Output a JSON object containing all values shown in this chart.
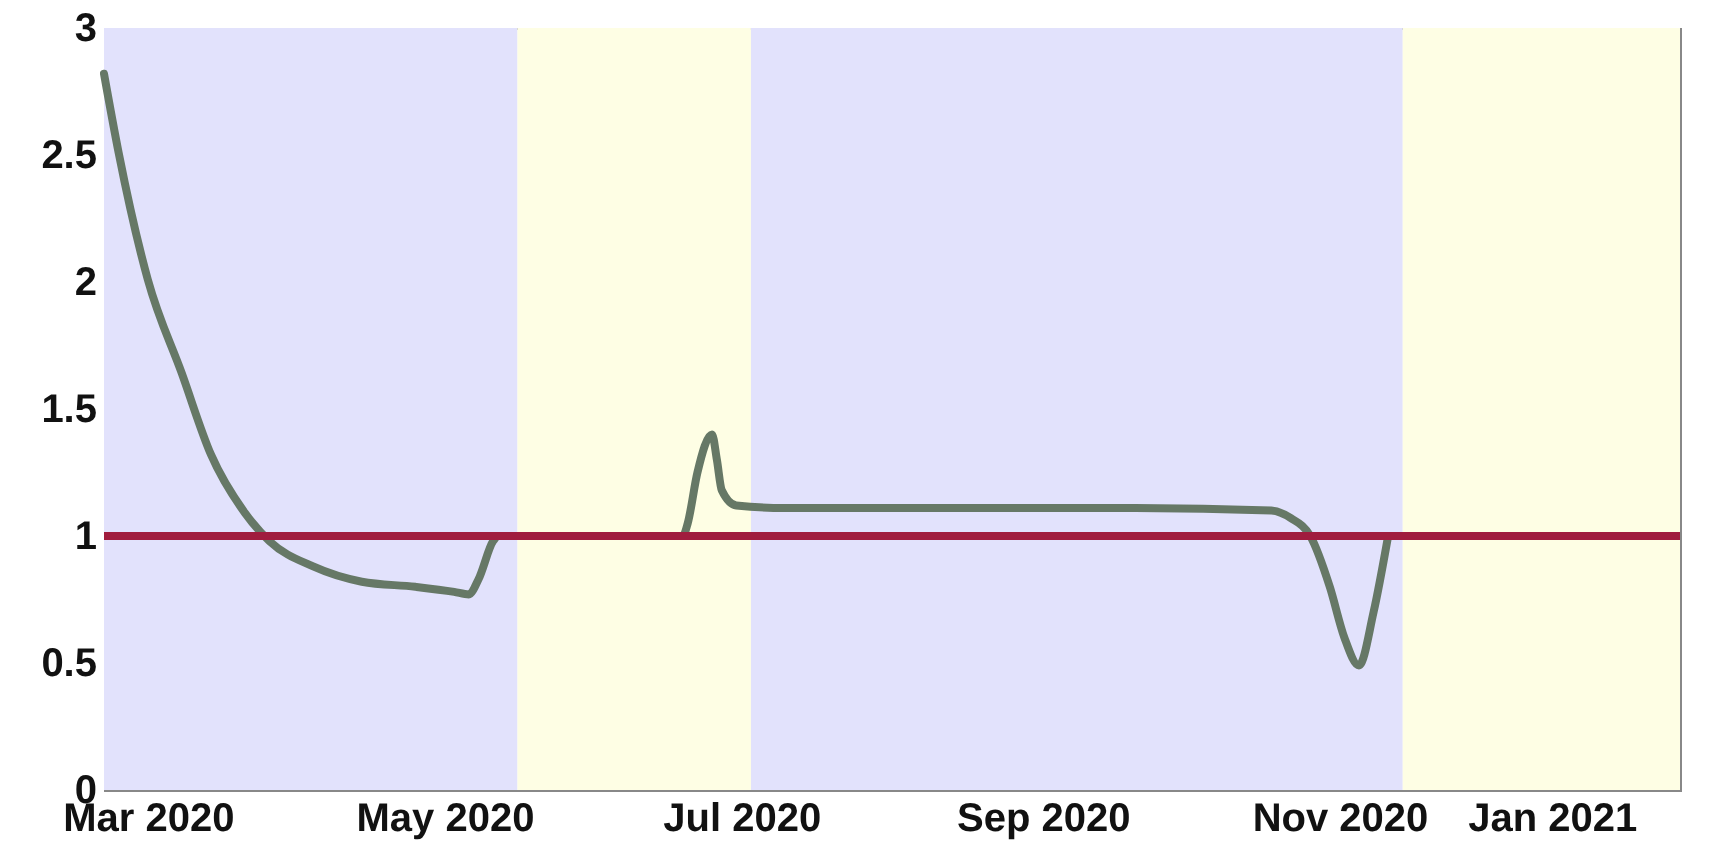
{
  "chart_data": {
    "type": "line",
    "x": [
      "2020-02-21",
      "2020-02-24",
      "2020-03-01",
      "2020-03-08",
      "2020-03-14",
      "2020-03-21",
      "2020-03-26",
      "2020-04-04",
      "2020-04-14",
      "2020-04-25",
      "2020-05-03",
      "2020-05-06",
      "2020-05-08",
      "2020-05-11",
      "2020-05-12",
      "2020-06-19",
      "2020-06-20",
      "2020-06-22",
      "2020-06-25",
      "2020-06-26",
      "2020-06-27",
      "2020-06-30",
      "2020-07-10",
      "2020-08-15",
      "2020-09-20",
      "2020-10-18",
      "2020-10-22",
      "2020-10-26",
      "2020-10-30",
      "2020-11-02",
      "2020-11-05",
      "2020-11-08",
      "2020-11-11"
    ],
    "series": [
      {
        "color": "#667866",
        "values": [
          2.82,
          2.51,
          2.01,
          1.64,
          1.32,
          1.09,
          0.98,
          0.88,
          0.82,
          0.8,
          0.78,
          0.77,
          0.83,
          0.98,
          1.0,
          1.0,
          1.05,
          1.25,
          1.4,
          1.3,
          1.18,
          1.12,
          1.11,
          1.11,
          1.11,
          1.1,
          1.07,
          1.0,
          0.8,
          0.6,
          0.49,
          0.7,
          1.0
        ]
      }
    ],
    "xlim": [
      "2020-02-21",
      "2021-01-10"
    ],
    "xticks": [
      {
        "value": "2020-03-01",
        "label": "Mar 2020"
      },
      {
        "value": "2020-05-01",
        "label": "May 2020"
      },
      {
        "value": "2020-07-01",
        "label": "Jul 2020"
      },
      {
        "value": "2020-09-01",
        "label": "Sep 2020"
      },
      {
        "value": "2020-11-01",
        "label": "Nov 2020"
      },
      {
        "value": "2021-01-01",
        "label": "Jan 2021"
      }
    ],
    "ylim": [
      0,
      3
    ],
    "yticks": [
      0,
      0.5,
      1,
      1.5,
      2,
      2.5,
      3
    ],
    "ref_lines": [
      {
        "axis": "y",
        "value": 1,
        "color": "#a01c3e"
      }
    ],
    "bands": [
      {
        "axis": "x",
        "from": "2020-02-21",
        "to": "2020-05-16",
        "color": "#e2e2fc"
      },
      {
        "axis": "x",
        "from": "2020-05-16",
        "to": "2020-07-03",
        "color": "#fefee4"
      },
      {
        "axis": "x",
        "from": "2020-07-03",
        "to": "2020-11-14",
        "color": "#e2e2fc"
      },
      {
        "axis": "x",
        "from": "2020-11-14",
        "to": "2021-01-10",
        "color": "#fefee4"
      }
    ],
    "grid": false
  }
}
